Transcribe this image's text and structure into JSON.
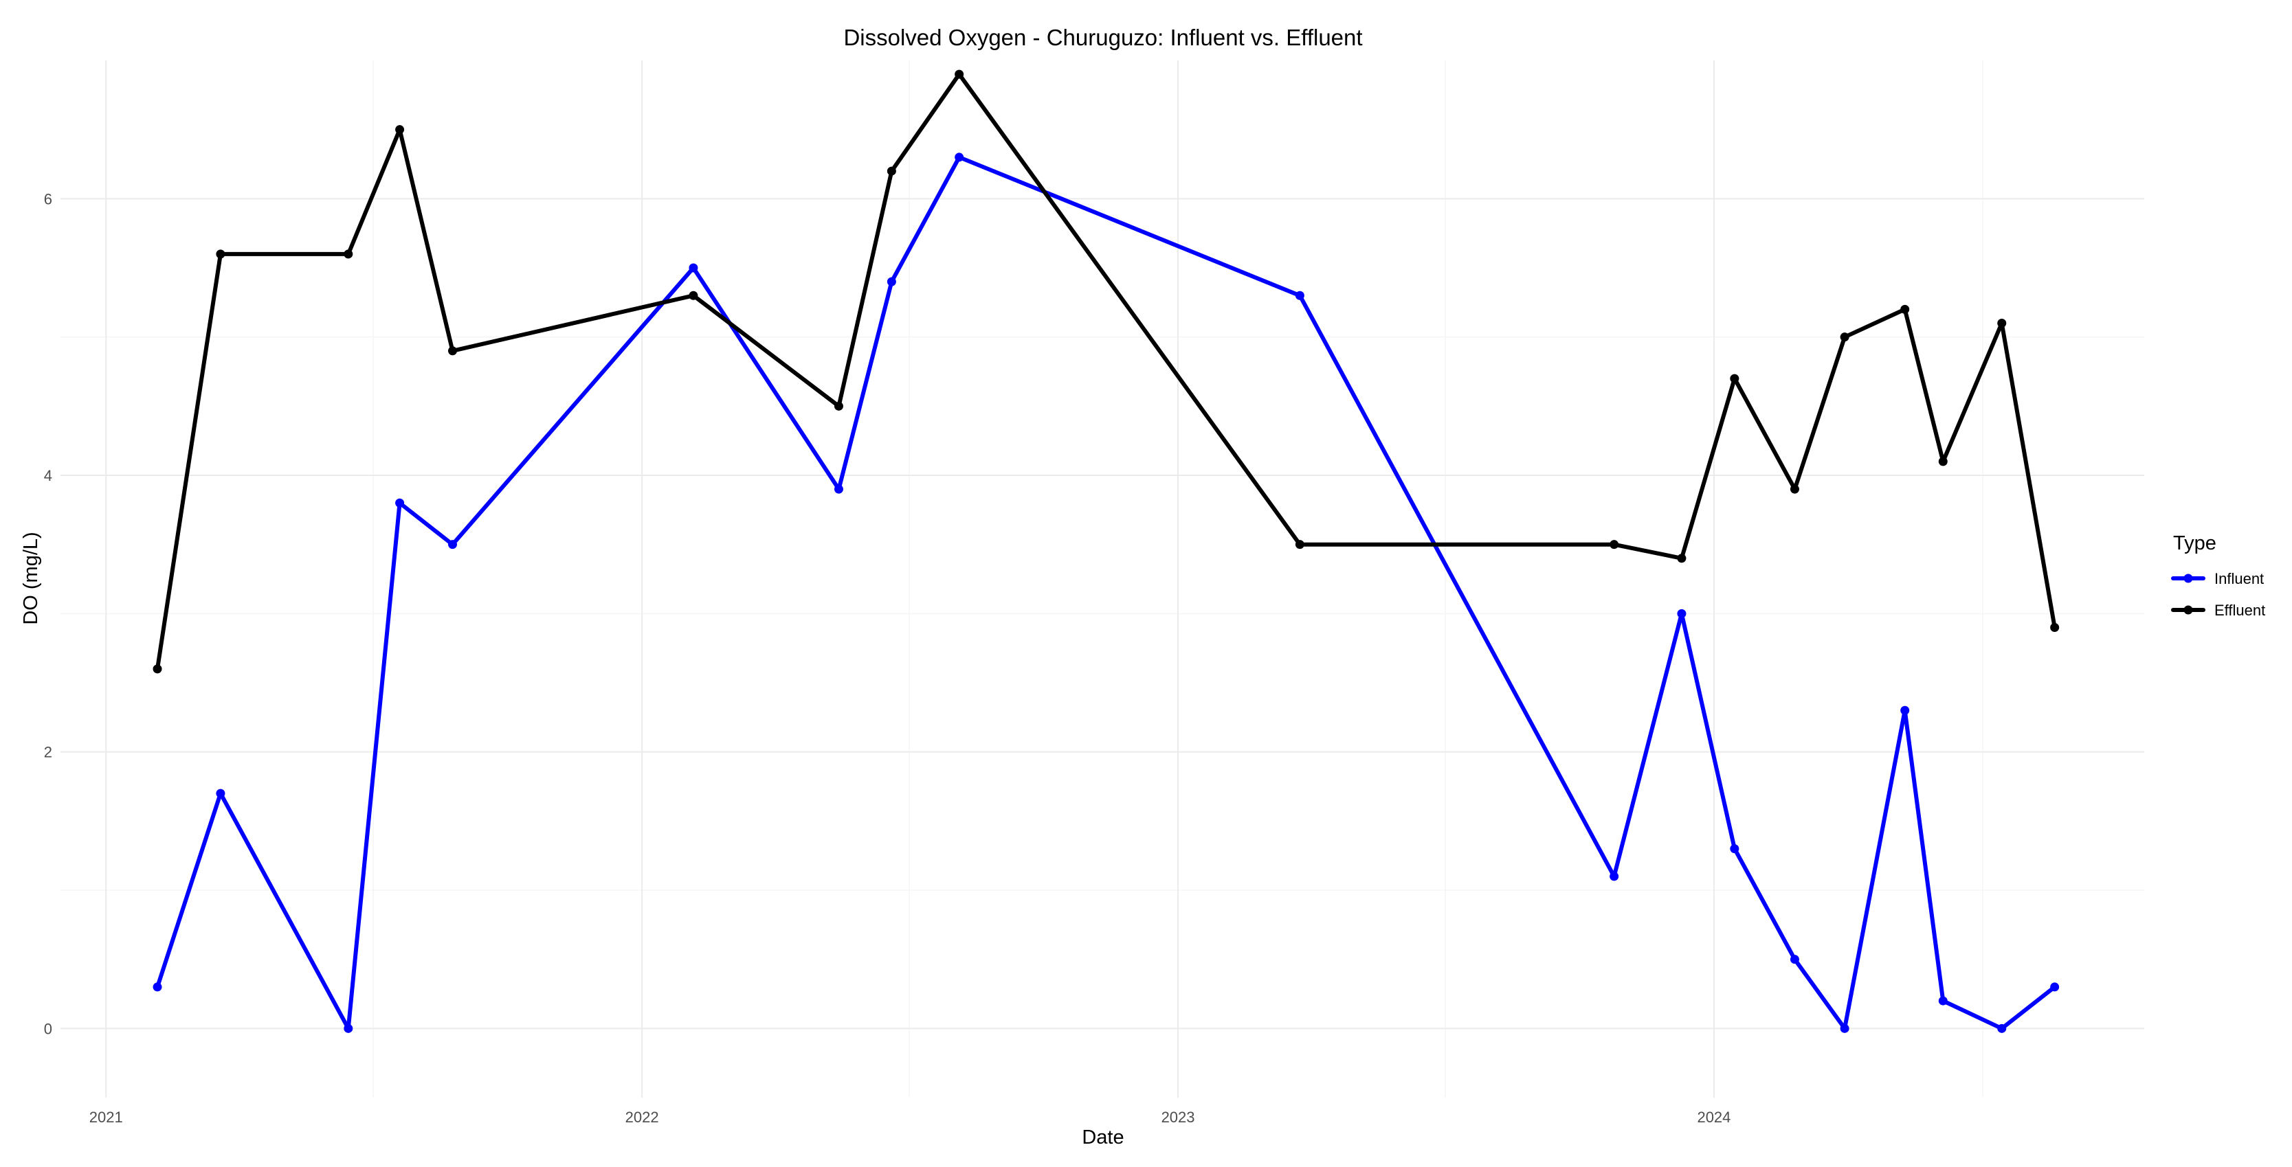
{
  "chart_data": {
    "type": "line",
    "title": "Dissolved Oxygen - Churuguzo: Influent vs. Effluent",
    "xlabel": "Date",
    "ylabel": "DO (mg/L)",
    "xlim": [
      "2020-12-01",
      "2024-10-20"
    ],
    "ylim": [
      -0.5,
      7.0
    ],
    "x_ticks": [
      "2021-01-01",
      "2022-01-01",
      "2023-01-01",
      "2024-01-01"
    ],
    "x_tick_labels": [
      "2021",
      "2022",
      "2023",
      "2024"
    ],
    "y_ticks": [
      0,
      2,
      4,
      6
    ],
    "y_tick_labels": [
      "0",
      "2",
      "4",
      "6"
    ],
    "grid": true,
    "legend": {
      "title": "Type",
      "position": "right"
    },
    "series": [
      {
        "name": "Influent",
        "color": "#0000ff",
        "points": [
          {
            "x": "2021-02-05",
            "y": 0.3
          },
          {
            "x": "2021-03-20",
            "y": 1.7
          },
          {
            "x": "2021-06-15",
            "y": 0.0
          },
          {
            "x": "2021-07-20",
            "y": 3.8
          },
          {
            "x": "2021-08-25",
            "y": 3.5
          },
          {
            "x": "2022-02-05",
            "y": 5.5
          },
          {
            "x": "2022-05-15",
            "y": 3.9
          },
          {
            "x": "2022-06-20",
            "y": 5.4
          },
          {
            "x": "2022-08-05",
            "y": 6.3
          },
          {
            "x": "2023-03-25",
            "y": 5.3
          },
          {
            "x": "2023-10-25",
            "y": 1.1
          },
          {
            "x": "2023-12-10",
            "y": 3.0
          },
          {
            "x": "2024-01-15",
            "y": 1.3
          },
          {
            "x": "2024-02-25",
            "y": 0.5
          },
          {
            "x": "2024-03-30",
            "y": 0.0
          },
          {
            "x": "2024-05-10",
            "y": 2.3
          },
          {
            "x": "2024-06-05",
            "y": 0.2
          },
          {
            "x": "2024-07-15",
            "y": 0.0
          },
          {
            "x": "2024-08-20",
            "y": 0.3
          }
        ]
      },
      {
        "name": "Effluent",
        "color": "#000000",
        "points": [
          {
            "x": "2021-02-05",
            "y": 2.6
          },
          {
            "x": "2021-03-20",
            "y": 5.6
          },
          {
            "x": "2021-06-15",
            "y": 5.6
          },
          {
            "x": "2021-07-20",
            "y": 6.5
          },
          {
            "x": "2021-08-25",
            "y": 4.9
          },
          {
            "x": "2022-02-05",
            "y": 5.3
          },
          {
            "x": "2022-05-15",
            "y": 4.5
          },
          {
            "x": "2022-06-20",
            "y": 6.2
          },
          {
            "x": "2022-08-05",
            "y": 6.9
          },
          {
            "x": "2023-03-25",
            "y": 3.5
          },
          {
            "x": "2023-10-25",
            "y": 3.5
          },
          {
            "x": "2023-12-10",
            "y": 3.4
          },
          {
            "x": "2024-01-15",
            "y": 4.7
          },
          {
            "x": "2024-02-25",
            "y": 3.9
          },
          {
            "x": "2024-03-30",
            "y": 5.0
          },
          {
            "x": "2024-05-10",
            "y": 5.2
          },
          {
            "x": "2024-06-05",
            "y": 4.1
          },
          {
            "x": "2024-07-15",
            "y": 5.1
          },
          {
            "x": "2024-08-20",
            "y": 2.9
          }
        ]
      }
    ]
  }
}
